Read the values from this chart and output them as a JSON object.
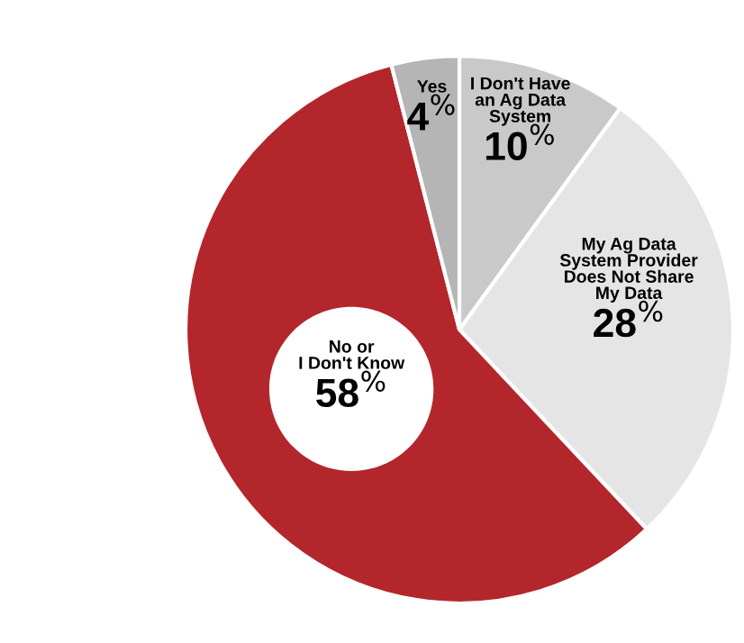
{
  "chart_data": {
    "type": "pie",
    "categories": [
      "I Don't Have\nan Ag Data\nSystem",
      "My Ag Data\nSystem Provider\nDoes Not Share\nMy Data",
      "No or\nI Don't Know",
      "Yes"
    ],
    "values": [
      10,
      28,
      58,
      4
    ],
    "value_labels": [
      "10$^{%}$",
      "28$^{%}$",
      "58$^{%}$",
      "4$^{%}$"
    ],
    "colors": [
      "#c9c9c9",
      "#e5e5e5",
      "#b3262c",
      "#b5b5b5"
    ]
  }
}
